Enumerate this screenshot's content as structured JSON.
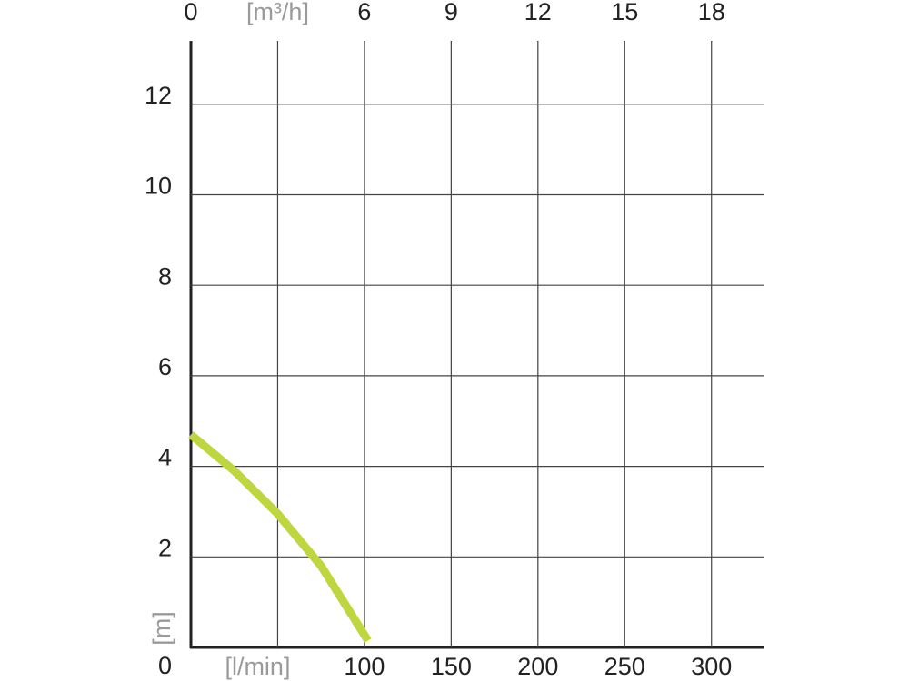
{
  "chart_data": {
    "type": "line",
    "x": [
      0,
      25,
      50,
      75,
      102
    ],
    "values": [
      4.7,
      3.9,
      2.95,
      1.8,
      0.15
    ],
    "color": "#bfd641",
    "xlim": [
      0,
      330
    ],
    "ylim": [
      0,
      13.4
    ],
    "x2lim": [
      0,
      19.8
    ],
    "xticks": [
      {
        "value": 50,
        "label": "[l/min]"
      },
      100,
      150,
      200,
      250,
      300
    ],
    "x2ticks": [
      0,
      {
        "value": 3,
        "label": "[m³/h]"
      },
      6,
      9,
      12,
      15,
      18
    ],
    "yticks": [
      0,
      2,
      4,
      6,
      8,
      10,
      12
    ],
    "ylabel": "[m]",
    "grid": true
  }
}
